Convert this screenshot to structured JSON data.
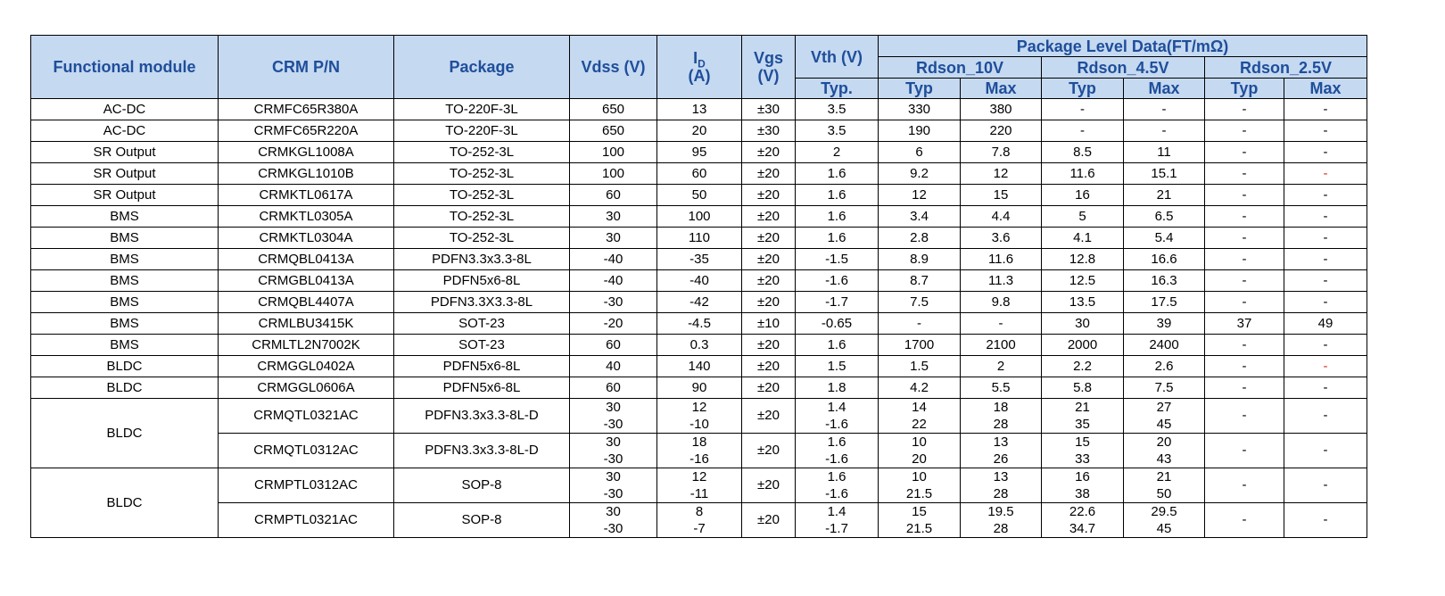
{
  "header": {
    "functional_module": "Functional module",
    "crm_pn": "CRM P/N",
    "package": "Package",
    "vdss": "Vdss (V)",
    "id_main": "I",
    "id_sub": "D",
    "id_unit": "(A)",
    "vgs_line1": "Vgs",
    "vgs_line2": "(V)",
    "vth": "Vth (V)",
    "vth_sub": "Typ.",
    "package_level": "Package Level Data(FT/mΩ)",
    "rdson_10v": "Rdson_10V",
    "rdson_45v": "Rdson_4.5V",
    "rdson_25v": "Rdson_2.5V",
    "typ": "Typ",
    "max": "Max"
  },
  "rows": [
    {
      "module": "AC-DC",
      "pn": "CRMFC65R380A",
      "package": "TO-220F-3L",
      "vdss": "650",
      "id": "13",
      "vgs": "±30",
      "vth": "3.5",
      "r10_typ": "330",
      "r10_max": "380",
      "r45_typ": "-",
      "r45_max": "-",
      "r25_typ": "-",
      "r25_max": "-"
    },
    {
      "module": "AC-DC",
      "pn": "CRMFC65R220A",
      "package": "TO-220F-3L",
      "vdss": "650",
      "id": "20",
      "vgs": "±30",
      "vth": "3.5",
      "r10_typ": "190",
      "r10_max": "220",
      "r45_typ": "-",
      "r45_max": "-",
      "r25_typ": "-",
      "r25_max": "-"
    },
    {
      "module": "SR Output",
      "pn": "CRMKGL1008A",
      "package": "TO-252-3L",
      "vdss": "100",
      "id": "95",
      "vgs": "±20",
      "vth": "2",
      "r10_typ": "6",
      "r10_max": "7.8",
      "r45_typ": "8.5",
      "r45_max": "11",
      "r25_typ": "-",
      "r25_max": "-"
    },
    {
      "module": "SR Output",
      "pn": "CRMKGL1010B",
      "package": "TO-252-3L",
      "vdss": "100",
      "id": "60",
      "vgs": "±20",
      "vth": "1.6",
      "r10_typ": "9.2",
      "r10_max": "12",
      "r45_typ": "11.6",
      "r45_max": "15.1",
      "r25_typ": "-",
      "r25_max": "-",
      "r25_max_red": true
    },
    {
      "module": "SR Output",
      "pn": "CRMKTL0617A",
      "package": "TO-252-3L",
      "vdss": "60",
      "id": "50",
      "vgs": "±20",
      "vth": "1.6",
      "r10_typ": "12",
      "r10_max": "15",
      "r45_typ": "16",
      "r45_max": "21",
      "r25_typ": "-",
      "r25_max": "-"
    },
    {
      "module": "BMS",
      "pn": "CRMKTL0305A",
      "package": "TO-252-3L",
      "vdss": "30",
      "id": "100",
      "vgs": "±20",
      "vth": "1.6",
      "r10_typ": "3.4",
      "r10_max": "4.4",
      "r45_typ": "5",
      "r45_max": "6.5",
      "r25_typ": "-",
      "r25_max": "-"
    },
    {
      "module": "BMS",
      "pn": "CRMKTL0304A",
      "package": "TO-252-3L",
      "vdss": "30",
      "id": "110",
      "vgs": "±20",
      "vth": "1.6",
      "r10_typ": "2.8",
      "r10_max": "3.6",
      "r45_typ": "4.1",
      "r45_max": "5.4",
      "r25_typ": "-",
      "r25_max": "-"
    },
    {
      "module": "BMS",
      "pn": "CRMQBL0413A",
      "package": "PDFN3.3x3.3-8L",
      "vdss": "-40",
      "id": "-35",
      "vgs": "±20",
      "vth": "-1.5",
      "r10_typ": "8.9",
      "r10_max": "11.6",
      "r45_typ": "12.8",
      "r45_max": "16.6",
      "r25_typ": "-",
      "r25_max": "-"
    },
    {
      "module": "BMS",
      "pn": "CRMGBL0413A",
      "package": "PDFN5x6-8L",
      "vdss": "-40",
      "id": "-40",
      "vgs": "±20",
      "vth": "-1.6",
      "r10_typ": "8.7",
      "r10_max": "11.3",
      "r45_typ": "12.5",
      "r45_max": "16.3",
      "r25_typ": "-",
      "r25_max": "-"
    },
    {
      "module": "BMS",
      "pn": "CRMQBL4407A",
      "package": "PDFN3.3X3.3-8L",
      "vdss": "-30",
      "id": "-42",
      "vgs": "±20",
      "vth": "-1.7",
      "r10_typ": "7.5",
      "r10_max": "9.8",
      "r45_typ": "13.5",
      "r45_max": "17.5",
      "r25_typ": "-",
      "r25_max": "-"
    },
    {
      "module": "BMS",
      "pn": "CRMLBU3415K",
      "package": "SOT-23",
      "vdss": "-20",
      "id": "-4.5",
      "vgs": "±10",
      "vth": "-0.65",
      "r10_typ": "-",
      "r10_max": "-",
      "r45_typ": "30",
      "r45_max": "39",
      "r25_typ": "37",
      "r25_max": "49"
    },
    {
      "module": "BMS",
      "pn": "CRMLTL2N7002K",
      "package": "SOT-23",
      "vdss": "60",
      "id": "0.3",
      "vgs": "±20",
      "vth": "1.6",
      "r10_typ": "1700",
      "r10_max": "2100",
      "r45_typ": "2000",
      "r45_max": "2400",
      "r25_typ": "-",
      "r25_max": "-"
    },
    {
      "module": "BLDC",
      "pn": "CRMGGL0402A",
      "package": "PDFN5x6-8L",
      "vdss": "40",
      "id": "140",
      "vgs": "±20",
      "vth": "1.5",
      "r10_typ": "1.5",
      "r10_max": "2",
      "r45_typ": "2.2",
      "r45_max": "2.6",
      "r25_typ": "-",
      "r25_max": "-",
      "r25_max_red": true
    },
    {
      "module": "BLDC",
      "pn": "CRMGGL0606A",
      "package": "PDFN5x6-8L",
      "vdss": "60",
      "id": "90",
      "vgs": "±20",
      "vth": "1.8",
      "r10_typ": "4.2",
      "r10_max": "5.5",
      "r45_typ": "5.8",
      "r45_max": "7.5",
      "r25_typ": "-",
      "r25_max": "-"
    }
  ],
  "groups": [
    {
      "module": "BLDC",
      "rows": [
        {
          "pn": "CRMQTL0321AC",
          "package": "PDFN3.3x3.3-8L-D",
          "vdss": [
            "30",
            "-30"
          ],
          "id": [
            "12",
            "-10"
          ],
          "vgs": "±20",
          "vth": [
            "1.4",
            "-1.6"
          ],
          "r10_typ": [
            "14",
            "22"
          ],
          "r10_max": [
            "18",
            "28"
          ],
          "r45_typ": [
            "21",
            "35"
          ],
          "r45_max": [
            "27",
            "45"
          ],
          "r25_typ": "-",
          "r25_max": "-"
        },
        {
          "pn": "CRMQTL0312AC",
          "package": "PDFN3.3x3.3-8L-D",
          "vdss": [
            "30",
            "-30"
          ],
          "id": [
            "18",
            "-16"
          ],
          "vgs": "±20",
          "vth": [
            "1.6",
            "-1.6"
          ],
          "r10_typ": [
            "10",
            "20"
          ],
          "r10_max": [
            "13",
            "26"
          ],
          "r45_typ": [
            "15",
            "33"
          ],
          "r45_max": [
            "20",
            "43"
          ],
          "r25_typ": "-",
          "r25_max": "-"
        }
      ]
    },
    {
      "module": "BLDC",
      "rows": [
        {
          "pn": "CRMPTL0312AC",
          "package": "SOP-8",
          "vdss": [
            "30",
            "-30"
          ],
          "id": [
            "12",
            "-11"
          ],
          "vgs": "±20",
          "vth": [
            "1.6",
            "-1.6"
          ],
          "r10_typ": [
            "10",
            "21.5"
          ],
          "r10_max": [
            "13",
            "28"
          ],
          "r45_typ": [
            "16",
            "38"
          ],
          "r45_max": [
            "21",
            "50"
          ],
          "r25_typ": "-",
          "r25_max": "-"
        },
        {
          "pn": "CRMPTL0321AC",
          "package": "SOP-8",
          "vdss": [
            "30",
            "-30"
          ],
          "id": [
            "8",
            "-7"
          ],
          "vgs": "±20",
          "vth": [
            "1.4",
            "-1.7"
          ],
          "r10_typ": [
            "15",
            "21.5"
          ],
          "r10_max": [
            "19.5",
            "28"
          ],
          "r45_typ": [
            "22.6",
            "34.7"
          ],
          "r45_max": [
            "29.5",
            "45"
          ],
          "r25_typ": "-",
          "r25_max": "-"
        }
      ]
    }
  ]
}
